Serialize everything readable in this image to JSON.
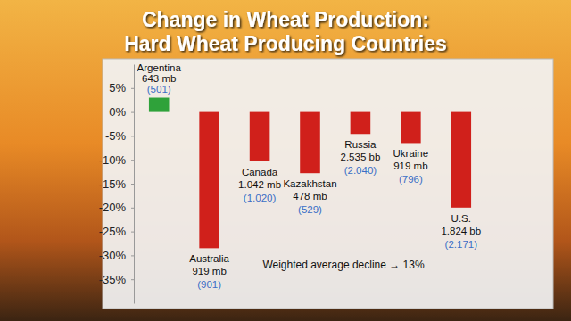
{
  "chart_data": {
    "type": "bar",
    "title": "Change in Wheat Production:",
    "subtitle": "Hard Wheat Producing Countries",
    "categories": [
      "Argentina",
      "Australia",
      "Canada",
      "Kazakhstan",
      "Russia",
      "Ukraine",
      "U.S."
    ],
    "values": [
      3,
      -28.5,
      -10.3,
      -12.8,
      -4.6,
      -6.5,
      -20
    ],
    "colors": [
      "#2fa23a",
      "#d0201b",
      "#d0201b",
      "#d0201b",
      "#d0201b",
      "#d0201b",
      "#d0201b"
    ],
    "production_labels": [
      "643 mb",
      "919 mb",
      "1.042 mb",
      "478 mb",
      "2.535 bb",
      "919 mb",
      "1.824 bb"
    ],
    "prior_labels": [
      "(501)",
      "(901)",
      "(1.020)",
      "(529)",
      "(2.040)",
      "(796)",
      "(2.171)"
    ],
    "annotations": [
      {
        "text": "Weighted average decline → 13%"
      }
    ],
    "ylim": [
      -40,
      10
    ],
    "yticks": [
      {
        "value": 5,
        "label": "5%"
      },
      {
        "value": 0,
        "label": "0%"
      },
      {
        "value": -5,
        "label": "-5%"
      },
      {
        "value": -10,
        "label": "-10%"
      },
      {
        "value": -15,
        "label": "-15%"
      },
      {
        "value": -20,
        "label": "-20%"
      },
      {
        "value": -25,
        "label": "-25%"
      },
      {
        "value": -30,
        "label": "-30%"
      },
      {
        "value": -35,
        "label": "-35%"
      }
    ],
    "grid": false
  }
}
